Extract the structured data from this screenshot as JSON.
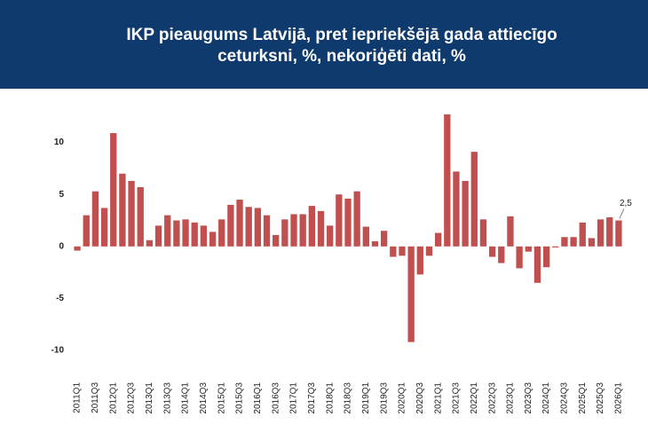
{
  "chart_data": {
    "type": "bar",
    "title": "IKP pieaugums Latvijā, pret iepriekšējā gada attiecīgo ceturksni, %, nekoriģēti dati, %",
    "categories": [
      "2011Q1",
      null,
      "2011Q3",
      null,
      "2012Q1",
      null,
      "2012Q3",
      null,
      "2013Q1",
      null,
      "2013Q3",
      null,
      "2014Q1",
      null,
      "2014Q3",
      null,
      "2015Q1",
      null,
      "2015Q3",
      null,
      "2016Q1",
      null,
      "2016Q3",
      null,
      "2017Q1",
      null,
      "2017Q3",
      null,
      "2018Q1",
      null,
      "2018Q3",
      null,
      "2019Q1",
      null,
      "2019Q3",
      null,
      "2020Q1",
      null,
      "2020Q3",
      null,
      "2021Q1",
      null,
      "2021Q3",
      null,
      "2022Q1",
      null,
      "2022Q3",
      null,
      "2023Q1",
      null,
      "2023Q3",
      null,
      "2024Q1",
      null,
      "2024Q3",
      null,
      "2025Q1",
      null,
      "2025Q3",
      null,
      "2026Q1"
    ],
    "values": [
      -0.4,
      3.0,
      5.3,
      3.7,
      10.9,
      7.0,
      6.3,
      5.7,
      0.6,
      2.0,
      3.0,
      2.5,
      2.6,
      2.3,
      2.0,
      1.4,
      2.6,
      4.0,
      4.5,
      3.8,
      3.7,
      3.0,
      1.1,
      2.6,
      3.1,
      3.1,
      3.9,
      3.4,
      2.0,
      5.0,
      4.6,
      5.3,
      1.9,
      0.5,
      1.5,
      -1.0,
      -0.9,
      -9.2,
      -2.7,
      -0.9,
      1.3,
      12.7,
      7.2,
      6.3,
      9.1,
      2.6,
      -1.0,
      -1.6,
      2.9,
      -2.1,
      -0.5,
      -3.5,
      -2.0,
      -0.1,
      0.9,
      0.9,
      2.3,
      0.8,
      2.6,
      2.8,
      2.5
    ],
    "value_labels": [
      null,
      null,
      null,
      null,
      null,
      null,
      null,
      null,
      null,
      null,
      null,
      null,
      null,
      null,
      null,
      null,
      null,
      null,
      null,
      null,
      null,
      null,
      null,
      null,
      null,
      null,
      null,
      null,
      null,
      null,
      null,
      null,
      null,
      null,
      null,
      null,
      null,
      null,
      null,
      null,
      null,
      null,
      null,
      null,
      null,
      null,
      null,
      null,
      null,
      null,
      null,
      null,
      null,
      null,
      null,
      null,
      null,
      null,
      null,
      null,
      "2,5"
    ],
    "color": "#c0504f",
    "ylim": [
      -10,
      13
    ],
    "yticks": [
      -10,
      -5,
      0,
      5,
      10
    ],
    "grid": false
  }
}
